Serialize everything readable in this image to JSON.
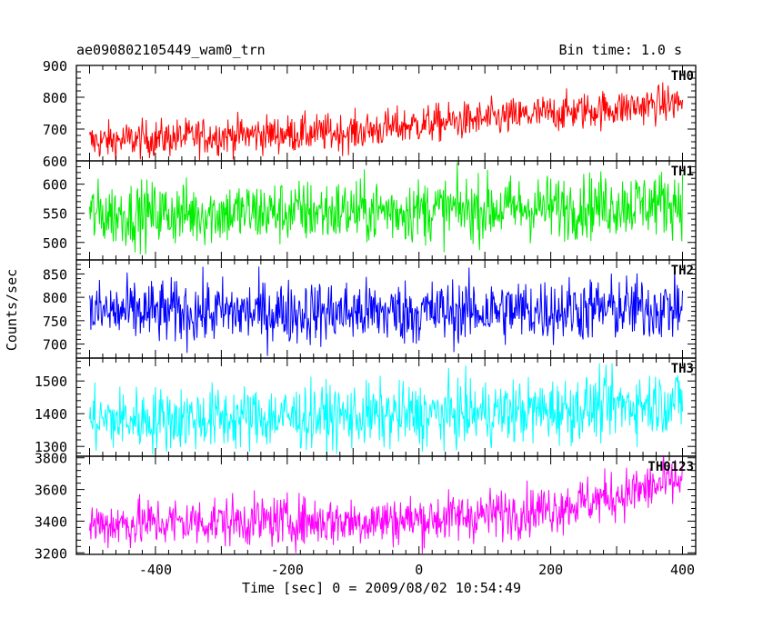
{
  "header": {
    "title": "ae090802105449_wam0_trn",
    "bin_time": "Bin time: 1.0 s"
  },
  "chart_data": {
    "type": "line",
    "title": "ae090802105449_wam0_trn",
    "subtitle": "Bin time: 1.0 s",
    "xlabel": "Time [sec] 0 = 2009/08/02 10:54:49",
    "ylabel": "Counts/sec",
    "xlim": [
      -520,
      420
    ],
    "x_range": [
      -500,
      400
    ],
    "xticks": [
      -400,
      -200,
      0,
      200,
      400
    ],
    "grid": false,
    "panels": [
      {
        "name": "TH0",
        "color": "#ff0000",
        "ylim": [
          600,
          900
        ],
        "yticks": [
          600,
          700,
          800,
          900
        ],
        "trend": [
          [
            -500,
            660
          ],
          [
            -300,
            680
          ],
          [
            -100,
            690
          ],
          [
            0,
            715
          ],
          [
            100,
            730
          ],
          [
            200,
            750
          ],
          [
            300,
            765
          ],
          [
            400,
            785
          ]
        ],
        "noise": 30
      },
      {
        "name": "TH1",
        "color": "#00ee00",
        "ylim": [
          470,
          640
        ],
        "yticks": [
          500,
          550,
          600
        ],
        "trend": [
          [
            -500,
            548
          ],
          [
            -200,
            552
          ],
          [
            0,
            555
          ],
          [
            200,
            560
          ],
          [
            400,
            570
          ]
        ],
        "noise": 28
      },
      {
        "name": "TH2",
        "color": "#0000ff",
        "ylim": [
          670,
          880
        ],
        "yticks": [
          700,
          750,
          800,
          850
        ],
        "trend": [
          [
            -500,
            768
          ],
          [
            0,
            768
          ],
          [
            400,
            778
          ]
        ],
        "noise": 35
      },
      {
        "name": "TH3",
        "color": "#00ffff",
        "ylim": [
          1270,
          1570
        ],
        "yticks": [
          1300,
          1400,
          1500
        ],
        "trend": [
          [
            -500,
            1380
          ],
          [
            -200,
            1390
          ],
          [
            0,
            1395
          ],
          [
            200,
            1410
          ],
          [
            400,
            1440
          ]
        ],
        "noise": 50
      },
      {
        "name": "TH0123",
        "color": "#ff00ff",
        "ylim": [
          3190,
          3810
        ],
        "yticks": [
          3200,
          3400,
          3600,
          3800
        ],
        "trend": [
          [
            -500,
            3380
          ],
          [
            -300,
            3400
          ],
          [
            -100,
            3400
          ],
          [
            0,
            3410
          ],
          [
            100,
            3440
          ],
          [
            200,
            3480
          ],
          [
            300,
            3560
          ],
          [
            400,
            3660
          ]
        ],
        "noise": 80
      }
    ]
  }
}
